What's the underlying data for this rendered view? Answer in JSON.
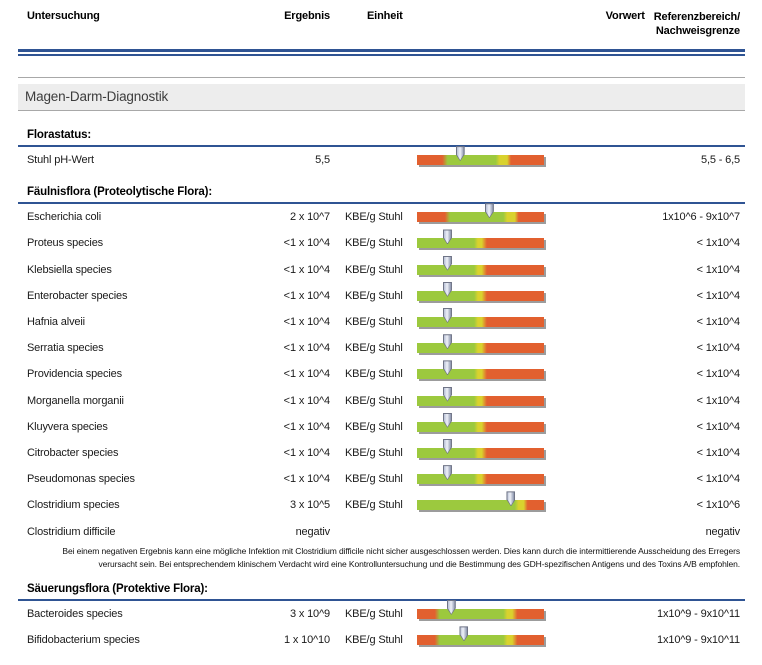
{
  "header": {
    "col_untersuchung": "Untersuchung",
    "col_ergebnis": "Ergebnis",
    "col_einheit": "Einheit",
    "col_vorwert": "Vorwert",
    "col_referenz_line1": "Referenzbereich/",
    "col_referenz_line2": "Nachweisgrenze"
  },
  "band_title": "Magen-Darm-Diagnostik",
  "colors": {
    "red": "#e2602f",
    "green": "#9cc93e",
    "yellow": "#d9d22e",
    "rule_blue": "#2f5493",
    "shadow_gray": "#9c9c9c",
    "band_gray": "#ededed"
  },
  "bar_types": {
    "ph": {
      "segments": [
        [
          "red",
          0,
          20
        ],
        [
          "green",
          24,
          62
        ],
        [
          "yellow",
          65,
          71
        ],
        [
          "red",
          74,
          100
        ]
      ]
    },
    "ecoli": {
      "segments": [
        [
          "red",
          0,
          22
        ],
        [
          "green",
          26,
          68
        ],
        [
          "yellow",
          71,
          77
        ],
        [
          "red",
          80,
          100
        ]
      ]
    },
    "low": {
      "segments": [
        [
          "green",
          0,
          45
        ],
        [
          "yellow",
          48,
          51
        ],
        [
          "red",
          55,
          100
        ]
      ]
    },
    "clost": {
      "segments": [
        [
          "green",
          0,
          77
        ],
        [
          "yellow",
          80,
          84
        ],
        [
          "red",
          87,
          100
        ]
      ]
    },
    "prot": {
      "segments": [
        [
          "red",
          0,
          14
        ],
        [
          "green",
          18,
          68
        ],
        [
          "yellow",
          71,
          75
        ],
        [
          "red",
          79,
          100
        ]
      ]
    }
  },
  "sections": [
    {
      "title": "Florastatus:",
      "rows": [
        {
          "name": "Stuhl pH-Wert",
          "result": "5,5",
          "unit": "",
          "reference": "5,5 - 6,5",
          "bar": {
            "type": "ph",
            "marker": 34
          }
        }
      ]
    },
    {
      "title": "Fäulnisflora (Proteolytische Flora):",
      "rows": [
        {
          "name": "Escherichia coli",
          "result": "2 x 10^7",
          "unit": "KBE/g Stuhl",
          "reference": "1x10^6 - 9x10^7",
          "bar": {
            "type": "ecoli",
            "marker": 57
          }
        },
        {
          "name": "Proteus species",
          "result": "<1 x 10^4",
          "unit": "KBE/g Stuhl",
          "reference": "< 1x10^4",
          "bar": {
            "type": "low",
            "marker": 24
          }
        },
        {
          "name": "Klebsiella species",
          "result": "<1 x 10^4",
          "unit": "KBE/g Stuhl",
          "reference": "< 1x10^4",
          "bar": {
            "type": "low",
            "marker": 24
          }
        },
        {
          "name": "Enterobacter species",
          "result": "<1 x 10^4",
          "unit": "KBE/g Stuhl",
          "reference": "< 1x10^4",
          "bar": {
            "type": "low",
            "marker": 24
          }
        },
        {
          "name": "Hafnia alveii",
          "result": "<1 x 10^4",
          "unit": "KBE/g Stuhl",
          "reference": "< 1x10^4",
          "bar": {
            "type": "low",
            "marker": 24
          }
        },
        {
          "name": "Serratia species",
          "result": "<1 x 10^4",
          "unit": "KBE/g Stuhl",
          "reference": "< 1x10^4",
          "bar": {
            "type": "low",
            "marker": 24
          }
        },
        {
          "name": "Providencia species",
          "result": "<1 x 10^4",
          "unit": "KBE/g Stuhl",
          "reference": "< 1x10^4",
          "bar": {
            "type": "low",
            "marker": 24
          }
        },
        {
          "name": "Morganella morganii",
          "result": "<1 x 10^4",
          "unit": "KBE/g Stuhl",
          "reference": "< 1x10^4",
          "bar": {
            "type": "low",
            "marker": 24
          }
        },
        {
          "name": "Kluyvera species",
          "result": "<1 x 10^4",
          "unit": "KBE/g Stuhl",
          "reference": "< 1x10^4",
          "bar": {
            "type": "low",
            "marker": 24
          }
        },
        {
          "name": "Citrobacter species",
          "result": "<1 x 10^4",
          "unit": "KBE/g Stuhl",
          "reference": "< 1x10^4",
          "bar": {
            "type": "low",
            "marker": 24
          }
        },
        {
          "name": "Pseudomonas species",
          "result": "<1 x 10^4",
          "unit": "KBE/g Stuhl",
          "reference": "< 1x10^4",
          "bar": {
            "type": "low",
            "marker": 24
          }
        },
        {
          "name": "Clostridium species",
          "result": "3 x 10^5",
          "unit": "KBE/g Stuhl",
          "reference": "< 1x10^6",
          "bar": {
            "type": "clost",
            "marker": 74
          }
        },
        {
          "name": "Clostridium difficile",
          "result": "negativ",
          "unit": "",
          "reference": "negativ",
          "bar": null
        }
      ],
      "note": "Bei einem negativen Ergebnis kann eine mögliche Infektion mit Clostridium difficile nicht sicher ausgeschlossen werden. Dies kann durch die intermittierende Ausscheidung des Erregers verursacht sein. Bei entsprechendem klinischem Verdacht wird eine Kontrolluntersuchung und die Bestimmung des GDH-spezifischen Antigens und des Toxins A/B empfohlen."
    },
    {
      "title": "Säuerungsflora (Protektive Flora):",
      "rows": [
        {
          "name": "Bacteroides species",
          "result": "3 x 10^9",
          "unit": "KBE/g Stuhl",
          "reference": "1x10^9 - 9x10^11",
          "bar": {
            "type": "prot",
            "marker": 27
          }
        },
        {
          "name": "Bifidobacterium species",
          "result": "1 x 10^10",
          "unit": "KBE/g Stuhl",
          "reference": "1x10^9 - 9x10^11",
          "bar": {
            "type": "prot",
            "marker": 37
          }
        }
      ]
    }
  ]
}
